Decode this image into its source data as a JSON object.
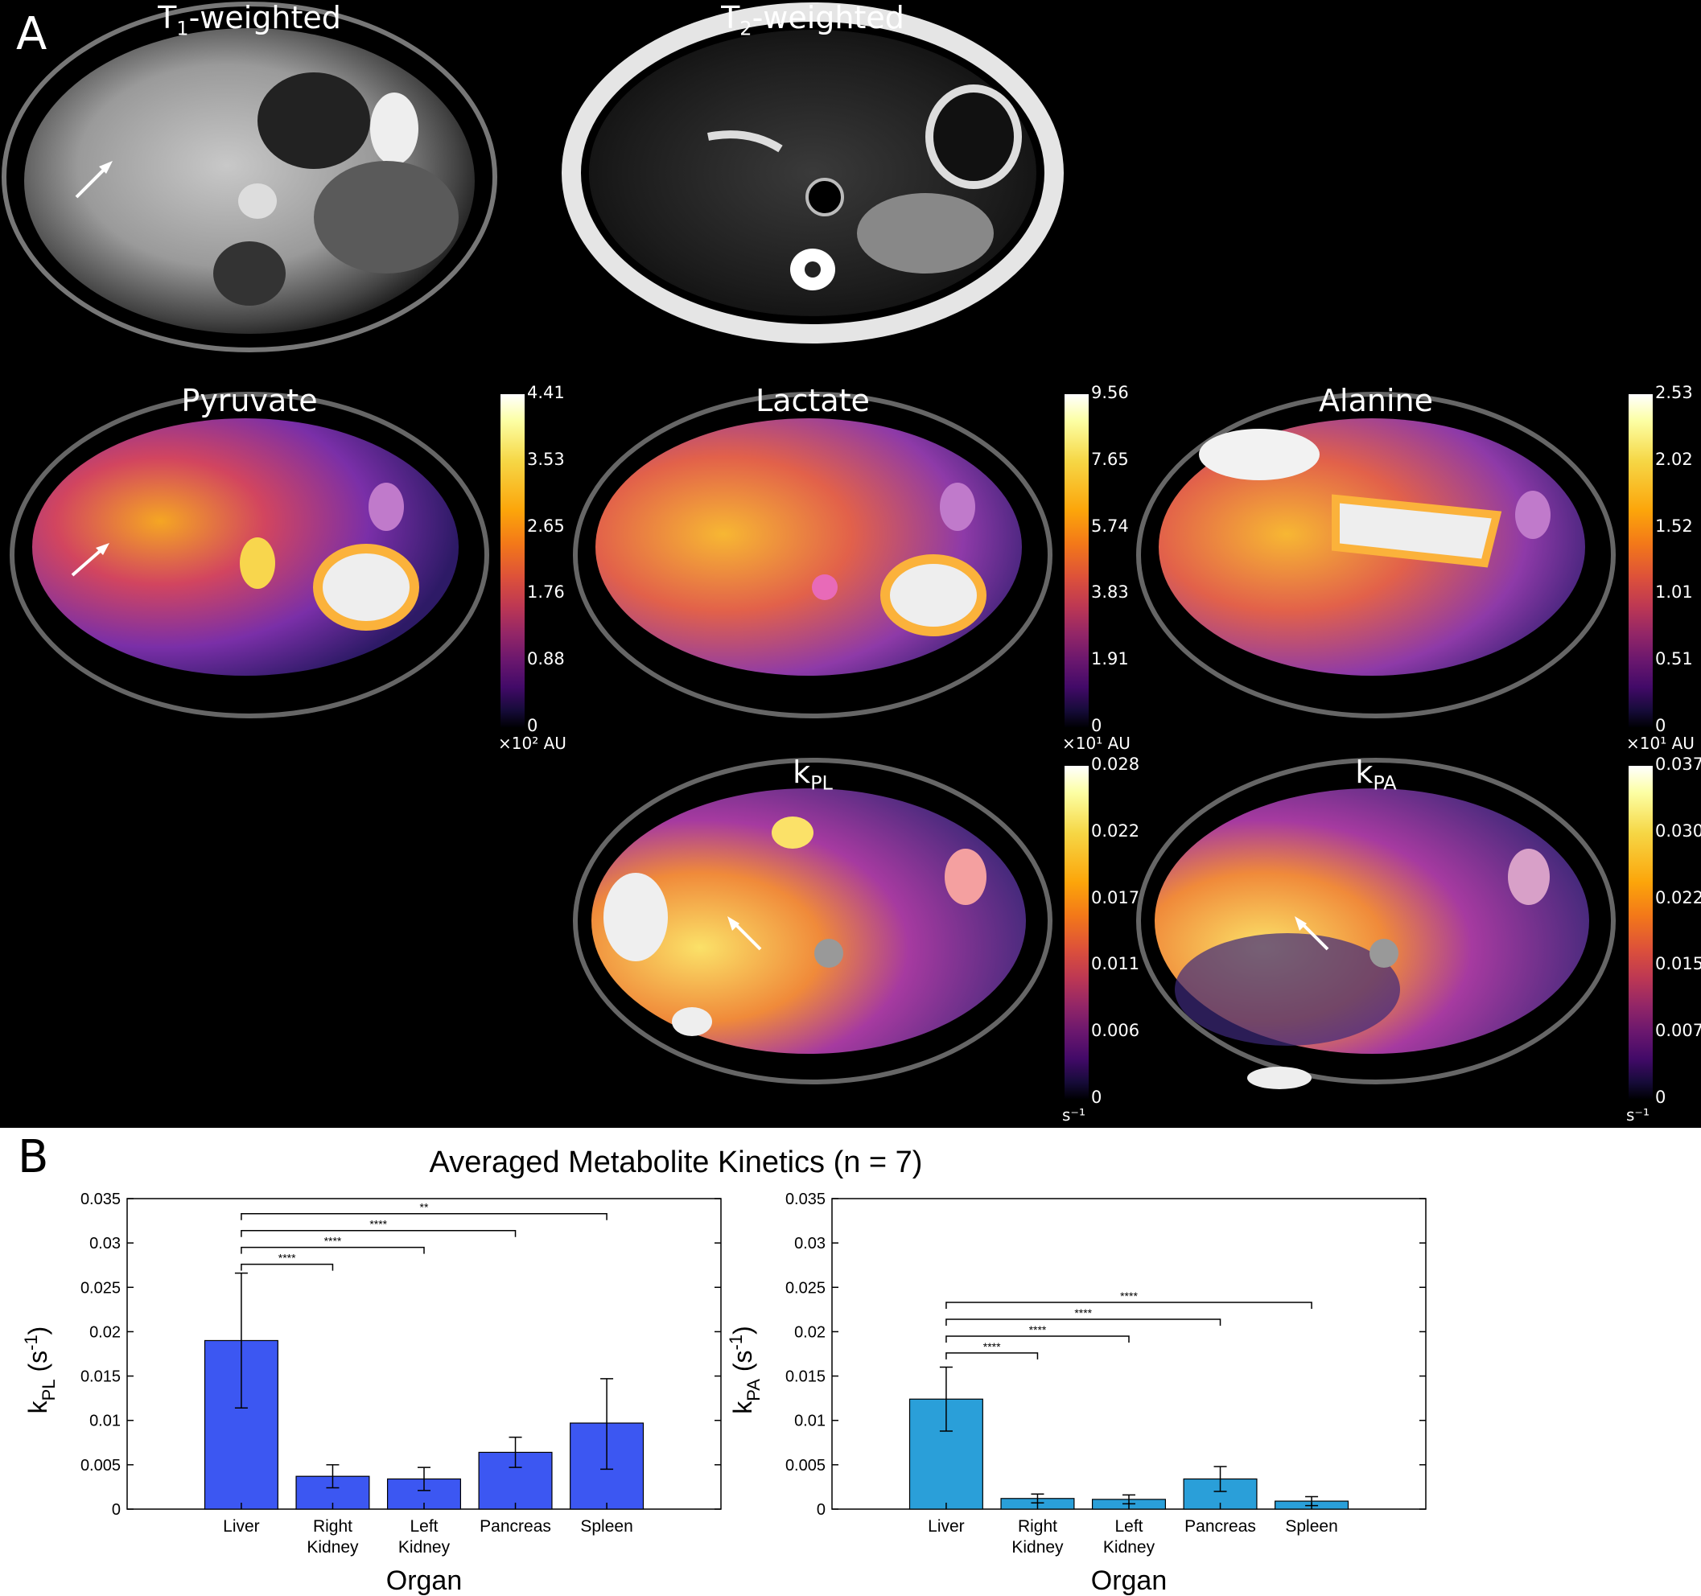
{
  "panel_a": {
    "letter": "A",
    "titles": {
      "t1_main": "T",
      "t1_sub": "1",
      "t1_suffix": "-weighted",
      "t2_main": "T",
      "t2_sub": "2",
      "t2_suffix": "-weighted",
      "pyruvate": "Pyruvate",
      "lactate": "Lactate",
      "alanine": "Alanine",
      "kpl_main": "k",
      "kpl_sub": "PL",
      "kpa_main": "k",
      "kpa_sub": "PA"
    },
    "colorbars": {
      "pyruvate": {
        "ticks": [
          "4.41",
          "3.53",
          "2.65",
          "1.76",
          "0.88",
          "0"
        ],
        "unit": "×10² AU"
      },
      "lactate": {
        "ticks": [
          "9.56",
          "7.65",
          "5.74",
          "3.83",
          "1.91",
          "0"
        ],
        "unit": "×10¹ AU"
      },
      "alanine": {
        "ticks": [
          "2.53",
          "2.02",
          "1.52",
          "1.01",
          "0.51",
          "0"
        ],
        "unit": "×10¹ AU"
      },
      "kpl": {
        "ticks": [
          "0.028",
          "0.022",
          "0.017",
          "0.011",
          "0.006",
          "0"
        ],
        "unit": "s⁻¹"
      },
      "kpa": {
        "ticks": [
          "0.037",
          "0.030",
          "0.022",
          "0.015",
          "0.007",
          "0"
        ],
        "unit": "s⁻¹"
      }
    },
    "colors": {
      "background": "#000000",
      "arrow": "#ffffff"
    }
  },
  "panel_b": {
    "letter": "B",
    "title": "Averaged Metabolite Kinetics (n = 7)"
  },
  "chart_data": [
    {
      "type": "bar",
      "categories": [
        "Liver",
        "Right Kidney",
        "Left Kidney",
        "Pancreas",
        "Spleen"
      ],
      "category_lines": [
        [
          "Liver"
        ],
        [
          "Right",
          "Kidney"
        ],
        [
          "Left",
          "Kidney"
        ],
        [
          "Pancreas"
        ],
        [
          "Spleen"
        ]
      ],
      "values": [
        0.019,
        0.0037,
        0.0034,
        0.0064,
        0.0097
      ],
      "error_low": [
        0.0114,
        0.0024,
        0.0021,
        0.0047,
        0.0045
      ],
      "error_high": [
        0.0266,
        0.005,
        0.0047,
        0.0081,
        0.0147
      ],
      "xlabel": "Organ",
      "ylabel_main": "k",
      "ylabel_sub": "PL",
      "ylabel_unit_prefix": " (s",
      "ylabel_unit_sup": "-1",
      "ylabel_unit_suffix": ")",
      "ylim": [
        0,
        0.035
      ],
      "yticks": [
        "0",
        "0.005",
        "0.01",
        "0.015",
        "0.02",
        "0.025",
        "0.03",
        "0.035"
      ],
      "significance": [
        {
          "from": "Liver",
          "to": "Right Kidney",
          "label": "****",
          "y": 0.0276
        },
        {
          "from": "Liver",
          "to": "Left Kidney",
          "label": "****",
          "y": 0.0295
        },
        {
          "from": "Liver",
          "to": "Pancreas",
          "label": "****",
          "y": 0.0314
        },
        {
          "from": "Liver",
          "to": "Spleen",
          "label": "**",
          "y": 0.0333
        }
      ],
      "bar_color": "#3c57f2"
    },
    {
      "type": "bar",
      "categories": [
        "Liver",
        "Right Kidney",
        "Left Kidney",
        "Pancreas",
        "Spleen"
      ],
      "category_lines": [
        [
          "Liver"
        ],
        [
          "Right",
          "Kidney"
        ],
        [
          "Left",
          "Kidney"
        ],
        [
          "Pancreas"
        ],
        [
          "Spleen"
        ]
      ],
      "values": [
        0.0124,
        0.0012,
        0.0011,
        0.0034,
        0.0009
      ],
      "error_low": [
        0.0088,
        0.0007,
        0.0006,
        0.002,
        0.0004
      ],
      "error_high": [
        0.016,
        0.0017,
        0.0016,
        0.0048,
        0.0014
      ],
      "xlabel": "Organ",
      "ylabel_main": "k",
      "ylabel_sub": "PA",
      "ylabel_unit_prefix": " (s",
      "ylabel_unit_sup": "-1",
      "ylabel_unit_suffix": ")",
      "ylim": [
        0,
        0.035
      ],
      "yticks": [
        "0",
        "0.005",
        "0.01",
        "0.015",
        "0.02",
        "0.025",
        "0.03",
        "0.035"
      ],
      "significance": [
        {
          "from": "Liver",
          "to": "Right Kidney",
          "label": "****",
          "y": 0.0176
        },
        {
          "from": "Liver",
          "to": "Left Kidney",
          "label": "****",
          "y": 0.0195
        },
        {
          "from": "Liver",
          "to": "Pancreas",
          "label": "****",
          "y": 0.0214
        },
        {
          "from": "Liver",
          "to": "Spleen",
          "label": "****",
          "y": 0.0233
        }
      ],
      "bar_color": "#2a9fd9"
    }
  ]
}
